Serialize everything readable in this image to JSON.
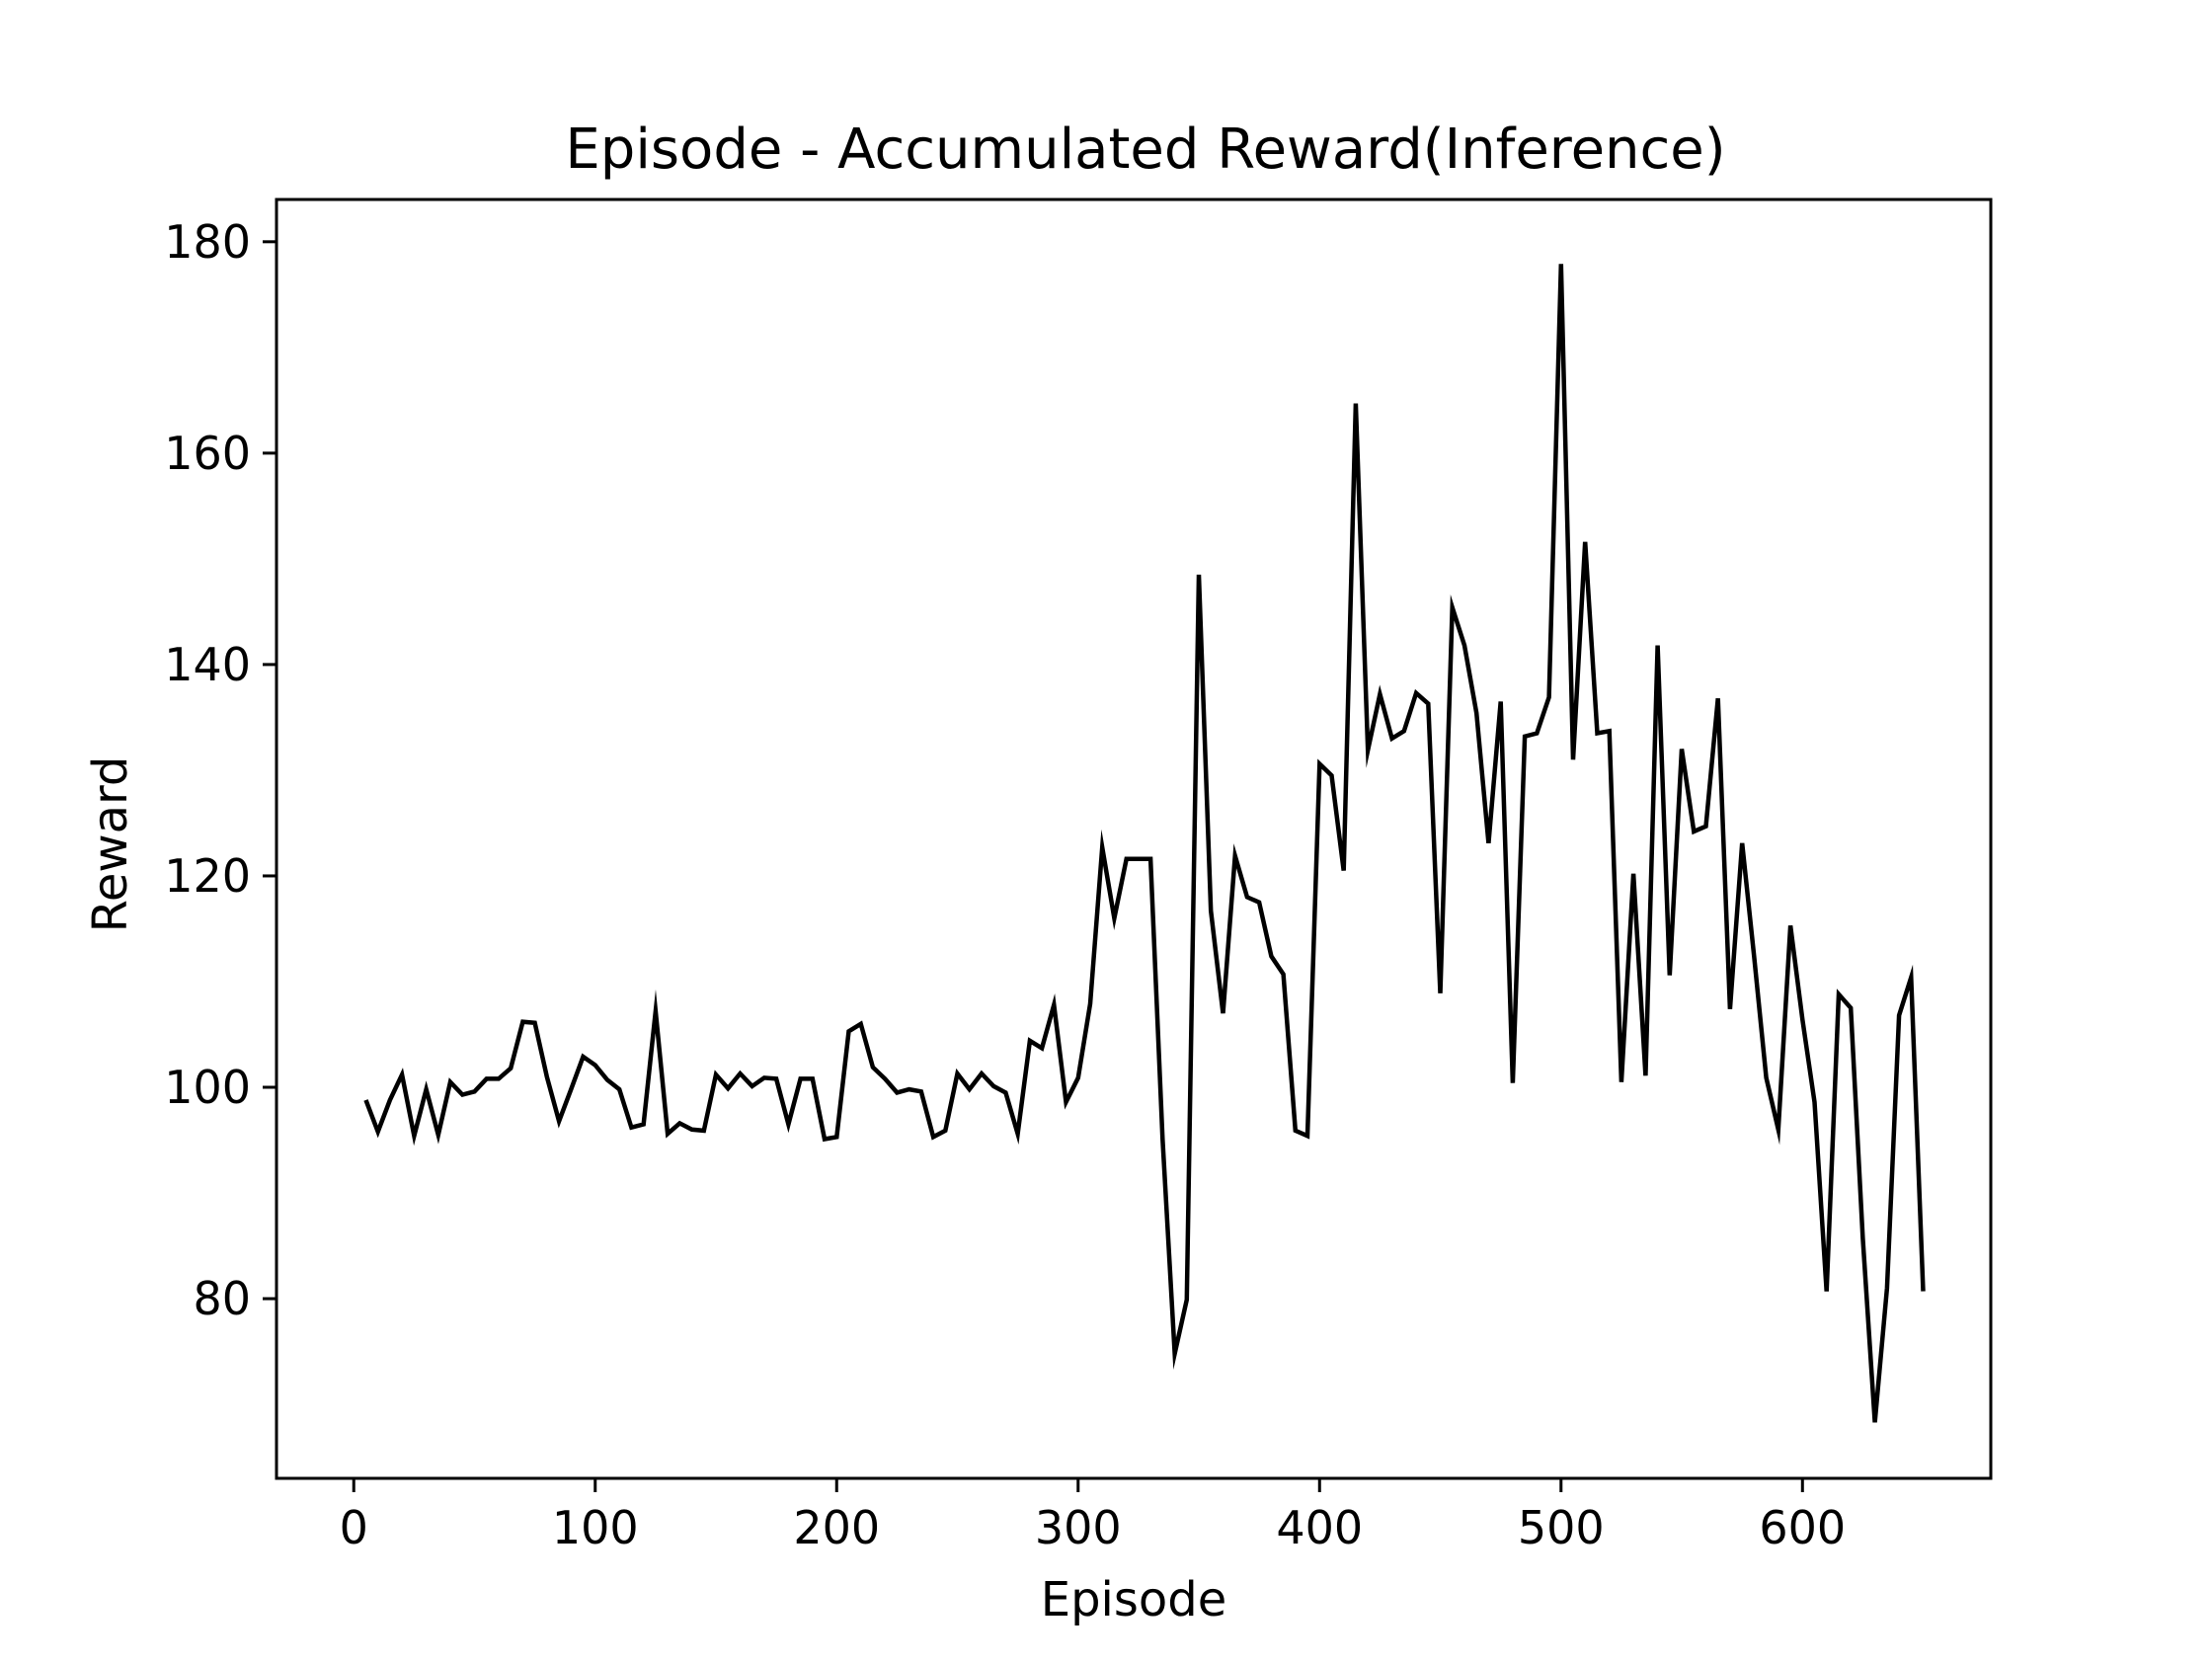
{
  "chart_data": {
    "type": "line",
    "title": "Episode - Accumulated Reward(Inference)",
    "xlabel": "Episode",
    "ylabel": "Reward",
    "xlim": [
      -32,
      678
    ],
    "ylim": [
      63,
      184
    ],
    "x_ticks": [
      0,
      100,
      200,
      300,
      400,
      500,
      600
    ],
    "y_ticks": [
      80,
      100,
      120,
      140,
      160,
      180
    ],
    "grid": false,
    "line_color": "#000000",
    "series": [
      {
        "x": [
          5,
          10,
          15,
          20,
          25,
          30,
          35,
          40,
          45,
          50,
          55,
          60,
          65,
          70,
          75,
          80,
          85,
          90,
          95,
          100,
          105,
          110,
          115,
          120,
          125,
          130,
          135,
          140,
          145,
          150,
          155,
          160,
          165,
          170,
          175,
          180,
          185,
          190,
          195,
          200,
          205,
          210,
          215,
          220,
          225,
          230,
          235,
          240,
          245,
          250,
          255,
          260,
          265,
          270,
          275,
          280,
          285,
          290,
          295,
          300,
          305,
          310,
          315,
          320,
          325,
          330,
          335,
          340,
          345,
          350,
          355,
          360,
          365,
          370,
          375,
          380,
          385,
          390,
          395,
          400,
          405,
          410,
          415,
          420,
          425,
          430,
          435,
          440,
          445,
          450,
          455,
          460,
          465,
          470,
          475,
          480,
          485,
          490,
          495,
          500,
          505,
          510,
          515,
          520,
          525,
          530,
          535,
          540,
          545,
          550,
          555,
          560,
          565,
          570,
          575,
          580,
          585,
          590,
          595,
          600,
          605,
          610,
          615,
          620,
          625,
          630,
          635,
          640,
          645,
          650
        ],
        "y": [
          98.8,
          95.8,
          98.8,
          101.2,
          95.4,
          99.8,
          95.5,
          100.5,
          99.3,
          99.6,
          100.8,
          100.8,
          101.8,
          106.2,
          106.1,
          101.0,
          96.8,
          99.8,
          102.9,
          102.1,
          100.7,
          99.8,
          96.2,
          96.5,
          107.2,
          95.6,
          96.6,
          96.0,
          95.9,
          101.2,
          99.9,
          101.3,
          100.1,
          100.9,
          100.8,
          96.5,
          100.8,
          100.8,
          95.1,
          95.3,
          105.3,
          106.0,
          101.9,
          100.8,
          99.5,
          99.8,
          99.6,
          95.3,
          95.9,
          101.3,
          99.8,
          101.3,
          100.1,
          99.5,
          95.6,
          104.4,
          103.7,
          107.8,
          98.6,
          100.9,
          107.9,
          122.7,
          116.0,
          121.6,
          121.6,
          121.6,
          95.1,
          74.8,
          79.9,
          148.5,
          116.7,
          107.0,
          121.9,
          118.0,
          117.5,
          112.4,
          110.7,
          95.9,
          95.4,
          130.6,
          129.5,
          120.5,
          164.7,
          131.9,
          137.2,
          133.0,
          133.7,
          137.3,
          136.3,
          108.9,
          145.4,
          141.8,
          135.4,
          123.1,
          136.5,
          100.4,
          133.2,
          133.5,
          136.9,
          177.9,
          131.0,
          151.6,
          133.5,
          133.7,
          100.5,
          120.2,
          101.1,
          141.8,
          110.6,
          132.0,
          124.2,
          124.7,
          136.8,
          107.4,
          123.1,
          112.3,
          100.9,
          96.0,
          115.3,
          106.4,
          98.6,
          80.7,
          108.8,
          107.5,
          85.7,
          68.3,
          81.0,
          106.8,
          110.4,
          80.7
        ]
      }
    ]
  }
}
